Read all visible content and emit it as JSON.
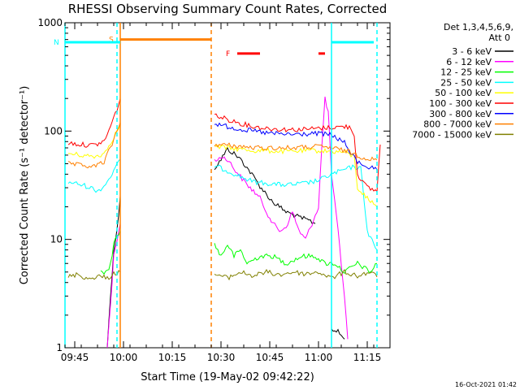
{
  "chart_data": {
    "type": "line",
    "title": "RHESSI Observing Summary Count Rates, Corrected",
    "xlabel": "Start Time (19-May-02 09:42:22)",
    "ylabel": "Corrected Count Rate (s⁻¹ detector⁻¹)",
    "y_scale": "log",
    "ylim": [
      1,
      1000
    ],
    "xlim": [
      "09:42",
      "11:22"
    ],
    "grid": false,
    "legend_position": "top-right",
    "timestamp": "16-Oct-2021 01:42",
    "x_ticks": [
      "09:45",
      "10:00",
      "10:15",
      "10:30",
      "10:45",
      "11:00",
      "11:15"
    ],
    "y_ticks": [
      "1",
      "10",
      "100",
      "1000"
    ],
    "legend": {
      "header1": "Det 1,3,4,5,6,9,",
      "header2": "Att 0"
    },
    "series": [
      {
        "name": "3 - 6 keV",
        "color": "#000000",
        "segments": [
          [
            [
              "09:55",
              1
            ],
            [
              "09:56",
              3
            ],
            [
              "09:57",
              8
            ],
            [
              "09:58",
              12
            ],
            [
              "09:59",
              25
            ]
          ],
          [
            [
              "10:28",
              45
            ],
            [
              "10:30",
              55
            ],
            [
              "10:32",
              68
            ],
            [
              "10:34",
              62
            ],
            [
              "10:36",
              55
            ],
            [
              "10:38",
              46
            ],
            [
              "10:40",
              38
            ],
            [
              "10:42",
              31
            ],
            [
              "10:44",
              26
            ],
            [
              "10:46",
              22
            ],
            [
              "10:48",
              20
            ],
            [
              "10:50",
              18
            ],
            [
              "10:52",
              17
            ],
            [
              "10:54",
              16
            ],
            [
              "10:57",
              15
            ],
            [
              "10:59",
              14
            ]
          ],
          [
            [
              "11:04",
              1.5
            ],
            [
              "11:06",
              1.4
            ],
            [
              "11:08",
              1.2
            ]
          ]
        ]
      },
      {
        "name": "6 - 12 keV",
        "color": "#ff00ff",
        "segments": [
          [
            [
              "09:55",
              1
            ],
            [
              "09:56",
              2.5
            ],
            [
              "09:57",
              7
            ],
            [
              "09:58",
              10
            ],
            [
              "09:59",
              14
            ]
          ],
          [
            [
              "10:28",
              52
            ],
            [
              "10:30",
              58
            ],
            [
              "10:32",
              55
            ],
            [
              "10:34",
              45
            ],
            [
              "10:36",
              38
            ],
            [
              "10:38",
              32
            ],
            [
              "10:40",
              28
            ],
            [
              "10:42",
              24
            ],
            [
              "10:44",
              18
            ],
            [
              "10:46",
              14
            ],
            [
              "10:48",
              12
            ],
            [
              "10:50",
              13
            ],
            [
              "10:52",
              18
            ],
            [
              "10:54",
              12
            ],
            [
              "10:56",
              10
            ],
            [
              "10:58",
              14
            ],
            [
              "11:00",
              20
            ],
            [
              "11:01",
              70
            ],
            [
              "11:02",
              200
            ],
            [
              "11:03",
              150
            ],
            [
              "11:04",
              40
            ],
            [
              "11:06",
              12
            ],
            [
              "11:08",
              3
            ],
            [
              "11:09",
              1.2
            ]
          ]
        ]
      },
      {
        "name": "12 - 25 keV",
        "color": "#00ff00",
        "segments": [
          [
            [
              "09:53",
              5
            ],
            [
              "09:55",
              5
            ],
            [
              "09:56",
              6
            ],
            [
              "09:57",
              9
            ],
            [
              "09:58",
              11
            ],
            [
              "09:59",
              12
            ]
          ],
          [
            [
              "10:28",
              9
            ],
            [
              "10:30",
              7
            ],
            [
              "10:32",
              9
            ],
            [
              "10:34",
              7
            ],
            [
              "10:36",
              8
            ],
            [
              "10:38",
              6
            ],
            [
              "10:42",
              7
            ],
            [
              "10:46",
              7
            ],
            [
              "10:50",
              6
            ],
            [
              "10:55",
              7
            ],
            [
              "10:59",
              7
            ],
            [
              "11:02",
              6
            ],
            [
              "11:05",
              6
            ],
            [
              "11:08",
              5
            ],
            [
              "11:12",
              6
            ],
            [
              "11:16",
              5
            ],
            [
              "11:18",
              6
            ]
          ]
        ]
      },
      {
        "name": "25 - 50 keV",
        "color": "#00ffff",
        "segments": [
          [
            [
              "09:43",
              34
            ],
            [
              "09:47",
              32
            ],
            [
              "09:50",
              30
            ],
            [
              "09:52",
              28
            ],
            [
              "09:54",
              31
            ],
            [
              "09:56",
              38
            ],
            [
              "09:58",
              48
            ],
            [
              "09:59",
              55
            ]
          ],
          [
            [
              "10:28",
              48
            ],
            [
              "10:32",
              43
            ],
            [
              "10:36",
              38
            ],
            [
              "10:40",
              34
            ],
            [
              "10:44",
              33
            ],
            [
              "10:48",
              32
            ],
            [
              "10:52",
              32
            ],
            [
              "10:56",
              33
            ],
            [
              "11:00",
              35
            ],
            [
              "11:04",
              40
            ],
            [
              "11:08",
              44
            ],
            [
              "11:11",
              47
            ],
            [
              "11:13",
              45
            ],
            [
              "11:14",
              24
            ],
            [
              "11:15",
              12
            ],
            [
              "11:17",
              9
            ],
            [
              "11:18",
              8
            ]
          ]
        ]
      },
      {
        "name": "50 - 100 keV",
        "color": "#ffff00",
        "segments": [
          [
            [
              "09:43",
              62
            ],
            [
              "09:47",
              60
            ],
            [
              "09:51",
              58
            ],
            [
              "09:54",
              62
            ],
            [
              "09:56",
              78
            ],
            [
              "09:58",
              100
            ],
            [
              "09:59",
              115
            ]
          ],
          [
            [
              "10:28",
              72
            ],
            [
              "10:32",
              70
            ],
            [
              "10:36",
              68
            ],
            [
              "10:40",
              66
            ],
            [
              "10:44",
              66
            ],
            [
              "10:48",
              65
            ],
            [
              "10:52",
              65
            ],
            [
              "10:56",
              66
            ],
            [
              "11:00",
              66
            ],
            [
              "11:04",
              65
            ],
            [
              "11:08",
              64
            ],
            [
              "11:10",
              60
            ],
            [
              "11:11",
              58
            ],
            [
              "11:12",
              30
            ],
            [
              "11:15",
              24
            ],
            [
              "11:18",
              20
            ]
          ]
        ]
      },
      {
        "name": "100 - 300 keV",
        "color": "#ff0000",
        "segments": [
          [
            [
              "09:43",
              78
            ],
            [
              "09:47",
              75
            ],
            [
              "09:51",
              74
            ],
            [
              "09:54",
              80
            ],
            [
              "09:56",
              110
            ],
            [
              "09:58",
              160
            ],
            [
              "09:59",
              200
            ]
          ],
          [
            [
              "10:28",
              140
            ],
            [
              "10:32",
              128
            ],
            [
              "10:36",
              118
            ],
            [
              "10:40",
              110
            ],
            [
              "10:44",
              106
            ],
            [
              "10:48",
              104
            ],
            [
              "10:52",
              103
            ],
            [
              "10:56",
              104
            ],
            [
              "11:00",
              106
            ],
            [
              "11:04",
              108
            ],
            [
              "11:08",
              110
            ],
            [
              "11:10",
              108
            ],
            [
              "11:11",
              90
            ],
            [
              "11:12",
              40
            ],
            [
              "11:15",
              30
            ],
            [
              "11:18",
              28
            ],
            [
              "11:19",
              75
            ]
          ]
        ]
      },
      {
        "name": "300 - 800 keV",
        "color": "#0000ff",
        "segments": [
          [
            [
              "10:28",
              118
            ],
            [
              "10:32",
              110
            ],
            [
              "10:36",
              104
            ],
            [
              "10:40",
              100
            ],
            [
              "10:44",
              96
            ],
            [
              "10:48",
              94
            ],
            [
              "10:52",
              93
            ],
            [
              "10:56",
              94
            ],
            [
              "11:00",
              95
            ],
            [
              "11:04",
              92
            ],
            [
              "11:08",
              78
            ],
            [
              "11:10",
              62
            ],
            [
              "11:12",
              52
            ],
            [
              "11:15",
              47
            ],
            [
              "11:18",
              44
            ]
          ]
        ]
      },
      {
        "name": "800 - 7000 keV",
        "color": "#ff8000",
        "segments": [
          [
            [
              "09:43",
              50
            ],
            [
              "09:47",
              48
            ],
            [
              "09:51",
              47
            ],
            [
              "09:54",
              52
            ],
            [
              "09:56",
              70
            ],
            [
              "09:58",
              100
            ],
            [
              "09:59",
              120
            ]
          ],
          [
            [
              "10:28",
              75
            ],
            [
              "10:32",
              74
            ],
            [
              "10:36",
              72
            ],
            [
              "10:40",
              70
            ],
            [
              "10:44",
              70
            ],
            [
              "10:48",
              70
            ],
            [
              "10:52",
              70
            ],
            [
              "10:56",
              71
            ],
            [
              "11:00",
              72
            ],
            [
              "11:04",
              70
            ],
            [
              "11:08",
              66
            ],
            [
              "11:11",
              62
            ],
            [
              "11:13",
              58
            ],
            [
              "11:16",
              55
            ],
            [
              "11:18",
              54
            ]
          ]
        ]
      },
      {
        "name": "7000 - 15000 keV",
        "color": "#808000",
        "segments": [
          [
            [
              "09:43",
              4.5
            ],
            [
              "09:46",
              4.8
            ],
            [
              "09:49",
              4.3
            ],
            [
              "09:52",
              4.6
            ],
            [
              "09:55",
              4.4
            ],
            [
              "09:57",
              4.8
            ],
            [
              "09:59",
              5
            ]
          ],
          [
            [
              "10:28",
              4.8
            ],
            [
              "10:32",
              4.4
            ],
            [
              "10:36",
              5
            ],
            [
              "10:40",
              4.6
            ],
            [
              "10:44",
              5
            ],
            [
              "10:48",
              4.7
            ],
            [
              "10:52",
              5
            ],
            [
              "10:56",
              4.8
            ],
            [
              "11:00",
              5
            ],
            [
              "11:04",
              4.4
            ],
            [
              "11:08",
              5
            ],
            [
              "11:12",
              4.6
            ],
            [
              "11:16",
              5
            ],
            [
              "11:18",
              4.5
            ]
          ]
        ]
      }
    ],
    "bars": [
      {
        "label": "S",
        "color": "#ff8000",
        "start": "09:59",
        "end": "10:27",
        "level": 700
      },
      {
        "label": "N",
        "color": "#00ffff",
        "start": "09:42",
        "end": "09:59",
        "level": 660
      },
      {
        "label": "F",
        "color": "#ff0000",
        "start": "10:35",
        "end": "10:42",
        "level": 520
      },
      {
        "label": "",
        "color": "#ff0000",
        "start": "11:00",
        "end": "11:02",
        "level": 520
      },
      {
        "label": "",
        "color": "#00ffff",
        "start": "11:04",
        "end": "11:17",
        "level": 660
      }
    ],
    "vlines": [
      {
        "time": "09:42",
        "color": "#00ffff",
        "style": "solid"
      },
      {
        "time": "09:58",
        "color": "#00ffff",
        "style": "dashed"
      },
      {
        "time": "09:59",
        "color": "#ff8000",
        "style": "solid"
      },
      {
        "time": "10:27",
        "color": "#ff8000",
        "style": "dashed"
      },
      {
        "time": "11:04",
        "color": "#00ffff",
        "style": "solid"
      },
      {
        "time": "11:18",
        "color": "#00ffff",
        "style": "dashed"
      }
    ]
  }
}
